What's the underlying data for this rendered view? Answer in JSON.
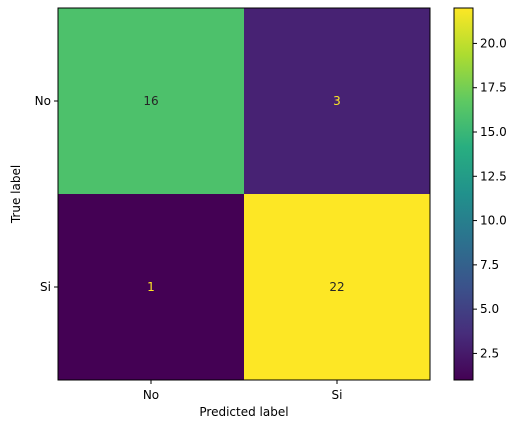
{
  "chart_data": {
    "type": "heatmap",
    "title": "",
    "xlabel": "Predicted label",
    "ylabel": "True label",
    "x_categories": [
      "No",
      "Si"
    ],
    "y_categories": [
      "No",
      "Si"
    ],
    "values": [
      [
        16,
        3
      ],
      [
        1,
        22
      ]
    ],
    "colormap": "viridis",
    "colorbar": {
      "range": [
        1,
        22
      ],
      "ticks": [
        "2.5",
        "5.0",
        "7.5",
        "10.0",
        "12.5",
        "15.0",
        "17.5",
        "20.0"
      ]
    },
    "text_color_light": "#fde725",
    "text_color_dark": "#262626"
  }
}
